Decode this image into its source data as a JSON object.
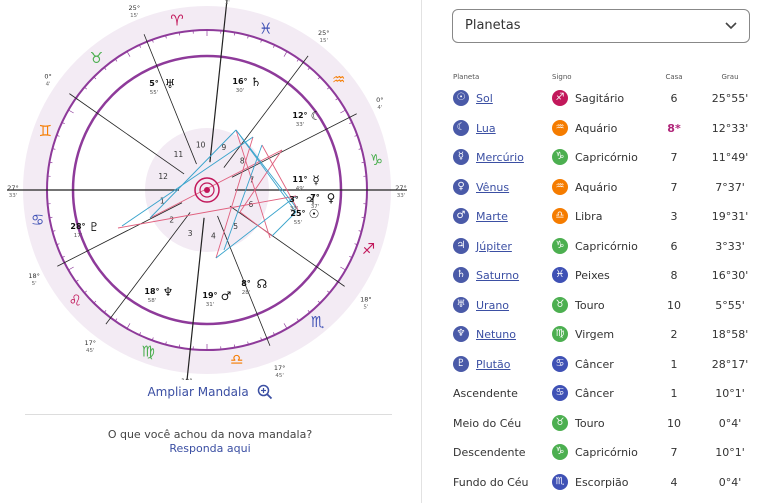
{
  "mandala": {
    "signs": [
      {
        "glyph": "♈",
        "color": "#c2185b"
      },
      {
        "glyph": "♓",
        "color": "#3f51b5"
      },
      {
        "glyph": "♒",
        "color": "#f57c00"
      },
      {
        "glyph": "♑",
        "color": "#4caf50"
      },
      {
        "glyph": "♐",
        "color": "#c2185b"
      },
      {
        "glyph": "♏",
        "color": "#3f51b5"
      },
      {
        "glyph": "♎",
        "color": "#f57c00"
      },
      {
        "glyph": "♍",
        "color": "#4caf50"
      },
      {
        "glyph": "♌",
        "color": "#c2185b"
      },
      {
        "glyph": "♋",
        "color": "#3f51b5"
      },
      {
        "glyph": "♊",
        "color": "#f57c00"
      },
      {
        "glyph": "♉",
        "color": "#4caf50"
      }
    ],
    "cusp_labels": [
      {
        "deg": "27°",
        "min": "33'"
      },
      {
        "deg": "18°",
        "min": "5'"
      },
      {
        "deg": "17°",
        "min": "45'"
      },
      {
        "deg": "10°",
        "min": "1'"
      },
      {
        "deg": "17°",
        "min": "45'"
      },
      {
        "deg": "18°",
        "min": "5'"
      },
      {
        "deg": "27°",
        "min": "33'"
      },
      {
        "deg": "0°",
        "min": "4'"
      },
      {
        "deg": "25°",
        "min": "15'"
      },
      {
        "deg": "10°",
        "min": "1'"
      },
      {
        "deg": "25°",
        "min": "15'"
      },
      {
        "deg": "0°",
        "min": "4'"
      }
    ],
    "house_numbers": [
      "1",
      "2",
      "3",
      "4",
      "5",
      "6",
      "7",
      "8",
      "9",
      "10",
      "11",
      "12"
    ],
    "planet_marks": [
      {
        "glyph": "♅",
        "deg": "5°",
        "min": "55'"
      },
      {
        "glyph": "♄",
        "deg": "16°",
        "min": "30'"
      },
      {
        "glyph": "☾",
        "deg": "12°",
        "min": "33'"
      },
      {
        "glyph": "♃",
        "deg": "3°",
        "min": "33'"
      },
      {
        "glyph": "♀",
        "deg": "7°",
        "min": "37'"
      },
      {
        "glyph": "☿",
        "deg": "11°",
        "min": "49'"
      },
      {
        "glyph": "☉",
        "deg": "25°",
        "min": "55'"
      },
      {
        "glyph": "♂",
        "deg": "19°",
        "min": "31'"
      },
      {
        "glyph": "☊",
        "deg": "8°",
        "min": "28'"
      },
      {
        "glyph": "♆",
        "deg": "18°",
        "min": "58'"
      },
      {
        "glyph": "♇",
        "deg": "28°",
        "min": "17'"
      }
    ],
    "zoom_label": "Ampliar Mandala"
  },
  "feedback": {
    "question": "O que você achou da nova mandala?",
    "link": "Responda aqui"
  },
  "select": {
    "value": "Planetas"
  },
  "table": {
    "headers": {
      "planet": "Planeta",
      "sign": "Signo",
      "house": "Casa",
      "degree": "Grau"
    },
    "rows": [
      {
        "planet": "Sol",
        "planet_glyph": "☉",
        "link": true,
        "sign": "Sagitário",
        "sign_glyph": "♐",
        "sign_color": "#c2185b",
        "house": "6",
        "degree": "25°55'"
      },
      {
        "planet": "Lua",
        "planet_glyph": "☾",
        "link": true,
        "sign": "Aquário",
        "sign_glyph": "♒",
        "sign_color": "#f57c00",
        "house": "8*",
        "highlight": true,
        "degree": "12°33'"
      },
      {
        "planet": "Mercúrio",
        "planet_glyph": "☿",
        "link": true,
        "sign": "Capricórnio",
        "sign_glyph": "♑",
        "sign_color": "#4caf50",
        "house": "7",
        "degree": "11°49'"
      },
      {
        "planet": "Vênus",
        "planet_glyph": "♀",
        "link": true,
        "sign": "Aquário",
        "sign_glyph": "♒",
        "sign_color": "#f57c00",
        "house": "7",
        "degree": "7°37'"
      },
      {
        "planet": "Marte",
        "planet_glyph": "♂",
        "link": true,
        "sign": "Libra",
        "sign_glyph": "♎",
        "sign_color": "#f57c00",
        "house": "3",
        "degree": "19°31'"
      },
      {
        "planet": "Júpiter",
        "planet_glyph": "♃",
        "link": true,
        "sign": "Capricórnio",
        "sign_glyph": "♑",
        "sign_color": "#4caf50",
        "house": "6",
        "degree": "3°33'"
      },
      {
        "planet": "Saturno",
        "planet_glyph": "♄",
        "link": true,
        "sign": "Peixes",
        "sign_glyph": "♓",
        "sign_color": "#3f51b5",
        "house": "8",
        "degree": "16°30'"
      },
      {
        "planet": "Urano",
        "planet_glyph": "♅",
        "link": true,
        "sign": "Touro",
        "sign_glyph": "♉",
        "sign_color": "#4caf50",
        "house": "10",
        "degree": "5°55'"
      },
      {
        "planet": "Netuno",
        "planet_glyph": "♆",
        "link": true,
        "sign": "Virgem",
        "sign_glyph": "♍",
        "sign_color": "#4caf50",
        "house": "2",
        "degree": "18°58'"
      },
      {
        "planet": "Plutão",
        "planet_glyph": "♇",
        "link": true,
        "sign": "Câncer",
        "sign_glyph": "♋",
        "sign_color": "#3f51b5",
        "house": "1",
        "degree": "28°17'"
      },
      {
        "planet": "Ascendente",
        "link": false,
        "sign": "Câncer",
        "sign_glyph": "♋",
        "sign_color": "#3f51b5",
        "house": "1",
        "degree": "10°1'"
      },
      {
        "planet": "Meio do Céu",
        "link": false,
        "sign": "Touro",
        "sign_glyph": "♉",
        "sign_color": "#4caf50",
        "house": "10",
        "degree": "0°4'"
      },
      {
        "planet": "Descendente",
        "link": false,
        "sign": "Capricórnio",
        "sign_glyph": "♑",
        "sign_color": "#4caf50",
        "house": "7",
        "degree": "10°1'"
      },
      {
        "planet": "Fundo do Céu",
        "link": false,
        "sign": "Escorpião",
        "sign_glyph": "♏",
        "sign_color": "#3f51b5",
        "house": "4",
        "degree": "0°4'"
      }
    ]
  },
  "colors": {
    "ring": "#8e3a9a",
    "link": "#3b4fa3",
    "planet_icon": "#4a5aa8",
    "highlight": "#b0267a"
  }
}
